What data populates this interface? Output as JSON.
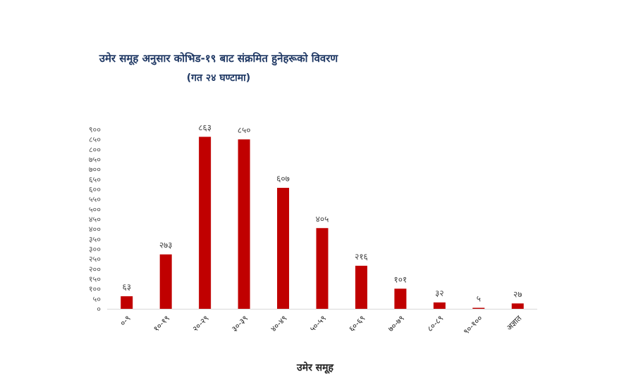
{
  "chart_data": {
    "type": "bar",
    "title": "उमेर समूह अनुसार कोभिड-१९ बाट संक्रमित हुनेहरूको विवरण",
    "subtitle": "(गत २४ घण्टामा)",
    "xlabel": "उमेर समूह",
    "ylabel": "",
    "categories": [
      "०-९",
      "१०-१९",
      "२०-२९",
      "३०-३९",
      "४०-४९",
      "५०-५९",
      "६०-६९",
      "७०-७९",
      "८०-८९",
      "९०-१००",
      "अज्ञात"
    ],
    "values": [
      63,
      273,
      863,
      850,
      607,
      405,
      216,
      101,
      32,
      5,
      27
    ],
    "value_labels": [
      "६३",
      "२७३",
      "८६३",
      "८५०",
      "६०७",
      "४०५",
      "२१६",
      "१०१",
      "३२",
      "५",
      "२७"
    ],
    "ylim": [
      0,
      900
    ],
    "yticks": [
      0,
      50,
      100,
      150,
      200,
      250,
      300,
      350,
      400,
      450,
      500,
      550,
      600,
      650,
      700,
      750,
      800,
      850,
      900
    ],
    "ytick_labels": [
      "०",
      "५०",
      "१००",
      "१५०",
      "२००",
      "२५०",
      "३००",
      "३५०",
      "४००",
      "४५०",
      "५००",
      "५५०",
      "६००",
      "६५०",
      "७००",
      "७५०",
      "८००",
      "८५०",
      "९००"
    ],
    "grid": false,
    "legend": "none",
    "colors": {
      "bar": "#c00000",
      "title": "#1f3864"
    }
  }
}
